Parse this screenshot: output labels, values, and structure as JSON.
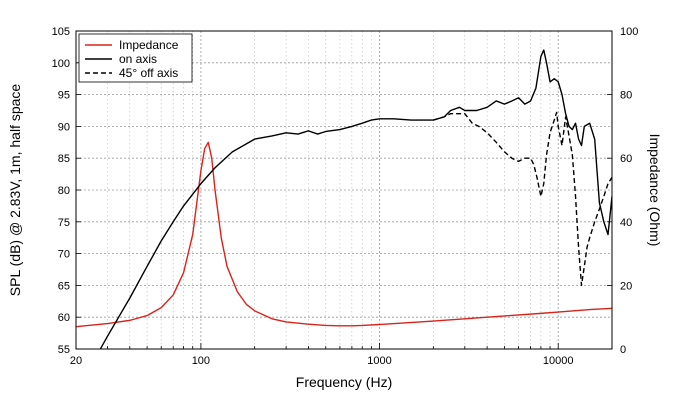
{
  "chart_data": {
    "type": "line",
    "xlabel": "Frequency (Hz)",
    "ylabel_left": "SPL (dB) @ 2.83V, 1m, half space",
    "ylabel_right": "Impedance (Ohm)",
    "x_scale": "log",
    "xlim": [
      20,
      20000
    ],
    "ylim_left": [
      55,
      105
    ],
    "ylim_right": [
      0,
      100
    ],
    "x_ticks": [
      20,
      100,
      1000,
      10000
    ],
    "x_tick_labels": [
      "20",
      "100",
      "1000",
      "10000"
    ],
    "y_left_ticks": [
      55,
      60,
      65,
      70,
      75,
      80,
      85,
      90,
      95,
      100,
      105
    ],
    "y_right_ticks": [
      0,
      20,
      40,
      60,
      80,
      100
    ],
    "grid": true,
    "legend_position": "top-left",
    "series": [
      {
        "name": "Impedance",
        "axis": "right",
        "color": "#d9231c",
        "style": "solid",
        "x": [
          20,
          30,
          40,
          50,
          60,
          70,
          80,
          90,
          100,
          105,
          110,
          115,
          120,
          130,
          140,
          160,
          180,
          200,
          250,
          300,
          400,
          500,
          600,
          700,
          800,
          1000,
          2000,
          3000,
          5000,
          8000,
          10000,
          15000,
          20000
        ],
        "y": [
          7,
          8,
          9,
          10.5,
          13,
          17,
          24,
          36,
          56,
          63,
          65,
          60,
          50,
          35,
          26,
          18,
          14,
          12,
          9.5,
          8.5,
          7.8,
          7.4,
          7.3,
          7.3,
          7.4,
          7.7,
          8.8,
          9.5,
          10.4,
          11.2,
          11.6,
          12.4,
          12.8
        ]
      },
      {
        "name": "on axis",
        "axis": "left",
        "color": "#000000",
        "style": "solid",
        "x": [
          20,
          25,
          30,
          40,
          50,
          60,
          70,
          80,
          100,
          120,
          150,
          200,
          250,
          300,
          350,
          400,
          450,
          500,
          600,
          700,
          800,
          900,
          1000,
          1200,
          1500,
          2000,
          2300,
          2500,
          2800,
          3000,
          3500,
          4000,
          4500,
          5000,
          5500,
          6000,
          6500,
          7000,
          7500,
          8000,
          8300,
          8600,
          9000,
          9500,
          10000,
          10500,
          11000,
          11500,
          12000,
          12500,
          13000,
          13500,
          14000,
          15000,
          16000,
          17000,
          18000,
          19000,
          20000
        ],
        "y": [
          50,
          53,
          57,
          63,
          68,
          72,
          75,
          77.5,
          81,
          83.5,
          86,
          88,
          88.5,
          89,
          88.8,
          89.3,
          88.8,
          89.2,
          89.5,
          90,
          90.5,
          91,
          91.2,
          91.2,
          91,
          91,
          91.5,
          92.5,
          93,
          92.5,
          92.5,
          93,
          94,
          93.5,
          94,
          94.5,
          93.5,
          94,
          96,
          101,
          102,
          100,
          97,
          97.5,
          97,
          95,
          92,
          90,
          89.5,
          90.5,
          88,
          87,
          90,
          90.5,
          88,
          78,
          75,
          73,
          79
        ]
      },
      {
        "name": "45° off axis",
        "axis": "left",
        "color": "#000000",
        "style": "dashed",
        "x": [
          2000,
          2300,
          2500,
          2800,
          3000,
          3300,
          3600,
          4000,
          4500,
          5000,
          5500,
          6000,
          6500,
          7000,
          7300,
          7600,
          8000,
          8300,
          8600,
          9000,
          9500,
          9800,
          10000,
          10500,
          11000,
          11500,
          12000,
          12500,
          13000,
          13500,
          14000,
          14500,
          15000,
          16000,
          17000,
          18000,
          19000,
          20000
        ],
        "y": [
          91,
          91.5,
          92,
          92,
          92,
          90.5,
          90,
          89,
          87.5,
          86,
          85,
          84.5,
          85,
          85,
          84,
          82,
          79,
          81,
          85.5,
          89,
          91,
          92.2,
          90,
          87,
          91.5,
          88.5,
          85.5,
          79,
          71,
          65,
          68,
          71,
          72.5,
          75,
          77,
          79,
          81,
          82
        ]
      }
    ]
  }
}
